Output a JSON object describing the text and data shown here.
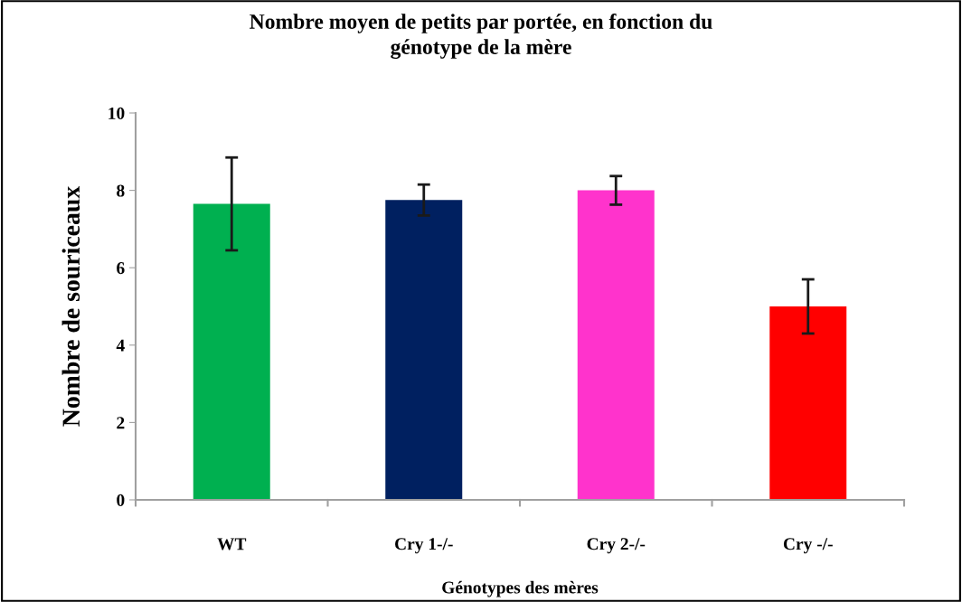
{
  "chart_data": {
    "type": "bar",
    "title": "Nombre moyen de petits par portée, en fonction du\ngénotype de la mère",
    "xlabel": "Génotypes des mères",
    "ylabel": "Nombre de souriceaux",
    "categories": [
      "WT",
      "Cry 1-/-",
      "Cry 2-/-",
      "Cry -/-"
    ],
    "values": [
      7.65,
      7.75,
      8.0,
      5.0
    ],
    "errors": [
      1.2,
      0.4,
      0.37,
      0.7
    ],
    "colors": [
      "#00b050",
      "#002060",
      "#ff33cc",
      "#ff0000"
    ],
    "ylim": [
      0,
      10
    ],
    "yticks": [
      0,
      2,
      4,
      6,
      8,
      10
    ],
    "grid": false,
    "legend": false
  }
}
